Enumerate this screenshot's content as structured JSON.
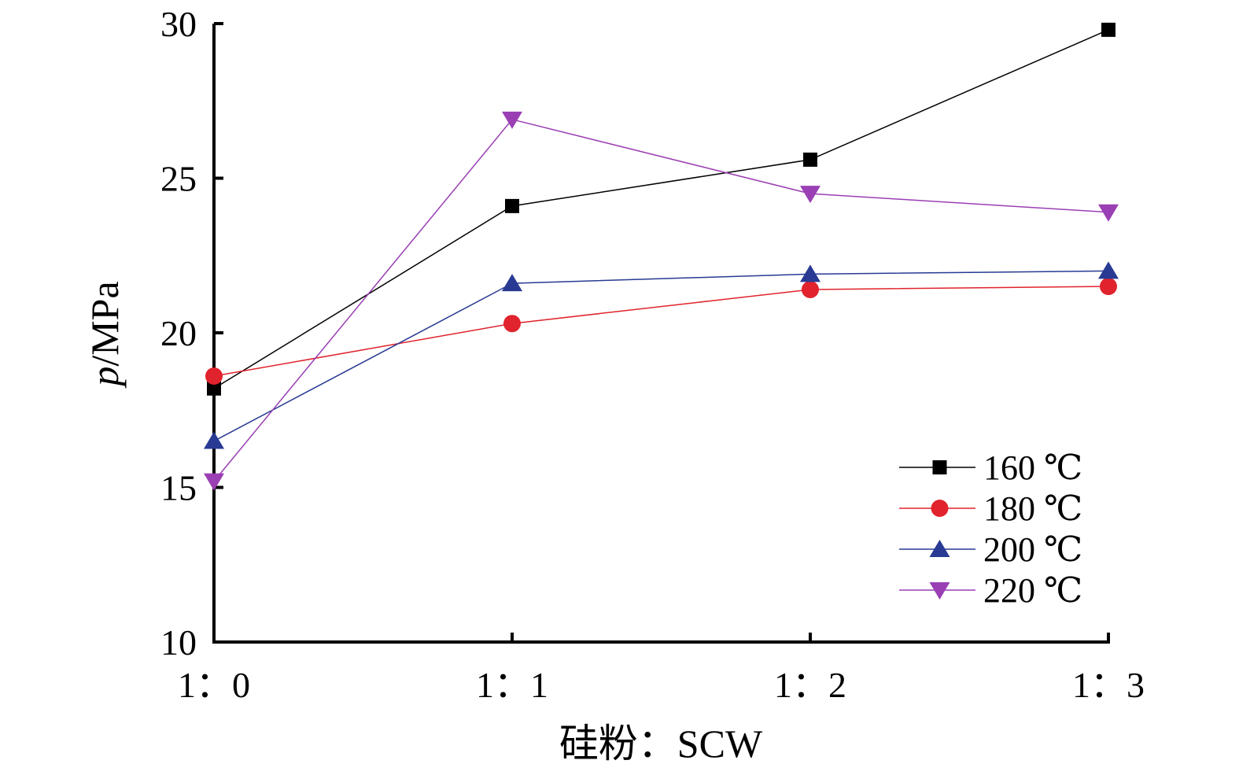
{
  "chart_data": {
    "type": "line",
    "categories": [
      "1：0",
      "1：1",
      "1：2",
      "1：3"
    ],
    "xlabel": "硅粉：SCW",
    "ylabel_var": "p",
    "ylabel_unit": "/MPa",
    "ylim": [
      10,
      30
    ],
    "yticks": [
      10,
      15,
      20,
      25,
      30
    ],
    "legend_position": "bottom-right",
    "grid": false,
    "series": [
      {
        "name": "160 ℃",
        "color": "#000000",
        "marker": "square",
        "values": [
          18.2,
          24.1,
          25.6,
          29.8
        ]
      },
      {
        "name": "180 ℃",
        "color": "#e0232c",
        "marker": "circle",
        "values": [
          18.6,
          20.3,
          21.4,
          21.5
        ]
      },
      {
        "name": "200 ℃",
        "color": "#283a93",
        "marker": "triangle-up",
        "values": [
          16.5,
          21.6,
          21.9,
          22.0
        ]
      },
      {
        "name": "220 ℃",
        "color": "#9a3fb4",
        "marker": "triangle-down",
        "values": [
          15.2,
          26.9,
          24.5,
          23.9
        ]
      }
    ]
  }
}
